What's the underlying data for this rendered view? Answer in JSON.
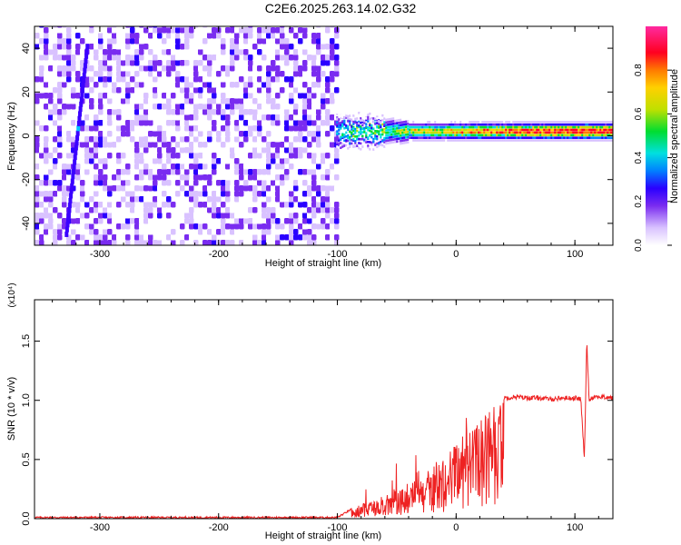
{
  "title": "C2E6.2025.263.14.02.G32",
  "chart_data": [
    {
      "type": "heatmap",
      "title": "C2E6.2025.263.14.02.G32",
      "xlabel": "Height of straight line (km)",
      "ylabel": "Frequency (Hz)",
      "xlim": [
        -355,
        132
      ],
      "ylim": [
        -50,
        50
      ],
      "x_ticks": [
        -300,
        -200,
        -100,
        0,
        100
      ],
      "y_ticks": [
        -40,
        -20,
        0,
        20,
        40
      ],
      "colorbar": {
        "label": "Normalized spectral amplitude",
        "range": [
          0.0,
          1.0
        ],
        "ticks": [
          0.0,
          0.2,
          0.4,
          0.6,
          0.8
        ],
        "colors": [
          "#ffffff",
          "#d9c2ff",
          "#7a2cf0",
          "#2a00ff",
          "#0080ff",
          "#00e0e0",
          "#00dd30",
          "#bfe000",
          "#ffd000",
          "#ff7a00",
          "#ff0020",
          "#ff2aa0"
        ]
      },
      "regions": [
        {
          "x_range": [
            -355,
            -101
          ],
          "description": "broadband noise across all frequencies",
          "amplitude_range": [
            0.0,
            0.3
          ]
        },
        {
          "x_range": [
            -101,
            132
          ],
          "center_frequency": 2,
          "amplitude_range": [
            0.3,
            1.0
          ]
        }
      ]
    },
    {
      "type": "line",
      "xlabel": "Height of straight line (km)",
      "ylabel": "SNR (10 * v/v)",
      "y_multiplier": "(x10⁴)",
      "xlim": [
        -355,
        132
      ],
      "ylim": [
        0,
        1.85
      ],
      "x_ticks": [
        -300,
        -200,
        -100,
        0,
        100
      ],
      "y_ticks": [
        0.0,
        0.5,
        1.0,
        1.5
      ],
      "series": [
        {
          "color": "#ee2222",
          "x": [
            -355,
            -300,
            -200,
            -100,
            -88,
            -80,
            -70,
            -60,
            -50,
            -40,
            -30,
            -20,
            -10,
            0,
            10,
            20,
            30,
            40,
            50,
            60,
            70,
            80,
            90,
            100,
            105,
            108,
            110,
            112,
            115,
            120,
            132
          ],
          "y": [
            0.01,
            0.01,
            0.01,
            0.01,
            0.08,
            0.12,
            0.16,
            0.2,
            0.25,
            0.3,
            0.34,
            0.45,
            0.55,
            0.65,
            0.75,
            0.85,
            0.95,
            1.02,
            1.03,
            1.02,
            1.02,
            1.01,
            1.02,
            1.02,
            1.01,
            0.5,
            1.5,
            1.0,
            1.03,
            1.03,
            1.02
          ]
        }
      ]
    }
  ]
}
